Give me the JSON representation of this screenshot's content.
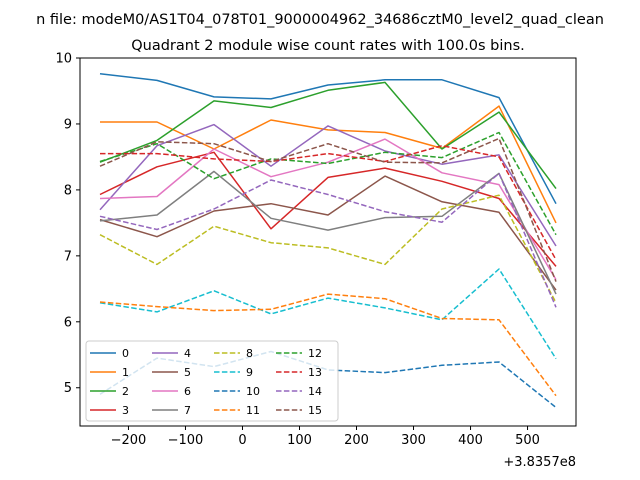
{
  "chart_data": {
    "type": "line",
    "suptitle": "n file: modeM0/AS1T04_078T01_9000004962_34686cztM0_level2_quad_clean",
    "title": "Quadrant 2 module wise count rates with 100.0s bins.",
    "xlabel": "",
    "ylabel": "",
    "offset_label": "+3.8357e8",
    "x": [
      -250,
      -150,
      -50,
      50,
      150,
      250,
      350,
      450,
      550
    ],
    "xlim": [
      -285,
      585
    ],
    "ylim": [
      4.42,
      10.0
    ],
    "xticks": [
      -200,
      -100,
      0,
      100,
      200,
      300,
      400,
      500
    ],
    "yticks": [
      5,
      6,
      7,
      8,
      9,
      10
    ],
    "grid": false,
    "legend": {
      "placement": "lower-left",
      "ncol": 4
    },
    "series": [
      {
        "name": "0",
        "color": "#1f77b4",
        "dash": "solid",
        "values": [
          9.76,
          9.66,
          9.41,
          9.38,
          9.59,
          9.67,
          9.67,
          9.4,
          7.79
        ]
      },
      {
        "name": "1",
        "color": "#ff7f0e",
        "dash": "solid",
        "values": [
          9.03,
          9.03,
          8.62,
          9.06,
          8.91,
          8.87,
          8.63,
          9.27,
          7.5
        ]
      },
      {
        "name": "2",
        "color": "#2ca02c",
        "dash": "solid",
        "values": [
          8.42,
          8.75,
          9.35,
          9.25,
          9.51,
          9.63,
          8.62,
          9.18,
          8.02
        ]
      },
      {
        "name": "3",
        "color": "#d62728",
        "dash": "solid",
        "values": [
          7.93,
          8.35,
          8.57,
          7.41,
          8.19,
          8.33,
          8.13,
          7.87,
          6.84
        ]
      },
      {
        "name": "4",
        "color": "#9467bd",
        "dash": "solid",
        "values": [
          7.7,
          8.67,
          8.99,
          8.36,
          8.97,
          8.59,
          8.39,
          8.53,
          7.15
        ]
      },
      {
        "name": "5",
        "color": "#8c564b",
        "dash": "solid",
        "values": [
          7.55,
          7.29,
          7.68,
          7.79,
          7.62,
          8.21,
          7.82,
          7.66,
          6.48
        ]
      },
      {
        "name": "6",
        "color": "#e377c2",
        "dash": "solid",
        "values": [
          7.87,
          7.9,
          8.62,
          8.2,
          8.42,
          8.77,
          8.26,
          8.08,
          6.64
        ]
      },
      {
        "name": "7",
        "color": "#7f7f7f",
        "dash": "solid",
        "values": [
          7.53,
          7.62,
          8.28,
          7.57,
          7.39,
          7.58,
          7.6,
          8.25,
          6.42
        ]
      },
      {
        "name": "8",
        "color": "#bcbd22",
        "dash": "dashed",
        "values": [
          7.32,
          6.87,
          7.45,
          7.2,
          7.12,
          6.87,
          7.71,
          7.92,
          6.29
        ]
      },
      {
        "name": "9",
        "color": "#17becf",
        "dash": "dashed",
        "values": [
          6.29,
          6.15,
          6.47,
          6.12,
          6.36,
          6.21,
          6.03,
          6.8,
          5.44
        ]
      },
      {
        "name": "10",
        "color": "#1f77b4",
        "dash": "dashed",
        "values": [
          4.9,
          5.45,
          5.32,
          5.55,
          5.27,
          5.23,
          5.34,
          5.39,
          4.7
        ]
      },
      {
        "name": "11",
        "color": "#ff7f0e",
        "dash": "dashed",
        "values": [
          6.3,
          6.23,
          6.17,
          6.19,
          6.42,
          6.35,
          6.05,
          6.03,
          4.88
        ]
      },
      {
        "name": "12",
        "color": "#2ca02c",
        "dash": "dashed",
        "values": [
          8.43,
          8.7,
          8.17,
          8.47,
          8.4,
          8.57,
          8.49,
          8.87,
          7.32
        ]
      },
      {
        "name": "13",
        "color": "#d62728",
        "dash": "dashed",
        "values": [
          8.55,
          8.55,
          8.47,
          8.43,
          8.55,
          8.43,
          8.67,
          8.5,
          6.94
        ]
      },
      {
        "name": "14",
        "color": "#9467bd",
        "dash": "dashed",
        "values": [
          7.6,
          7.4,
          7.71,
          8.15,
          7.93,
          7.67,
          7.51,
          8.25,
          6.22
        ]
      },
      {
        "name": "15",
        "color": "#8c564b",
        "dash": "dashed",
        "values": [
          8.36,
          8.73,
          8.7,
          8.43,
          8.7,
          8.42,
          8.41,
          8.78,
          6.61
        ]
      }
    ]
  }
}
